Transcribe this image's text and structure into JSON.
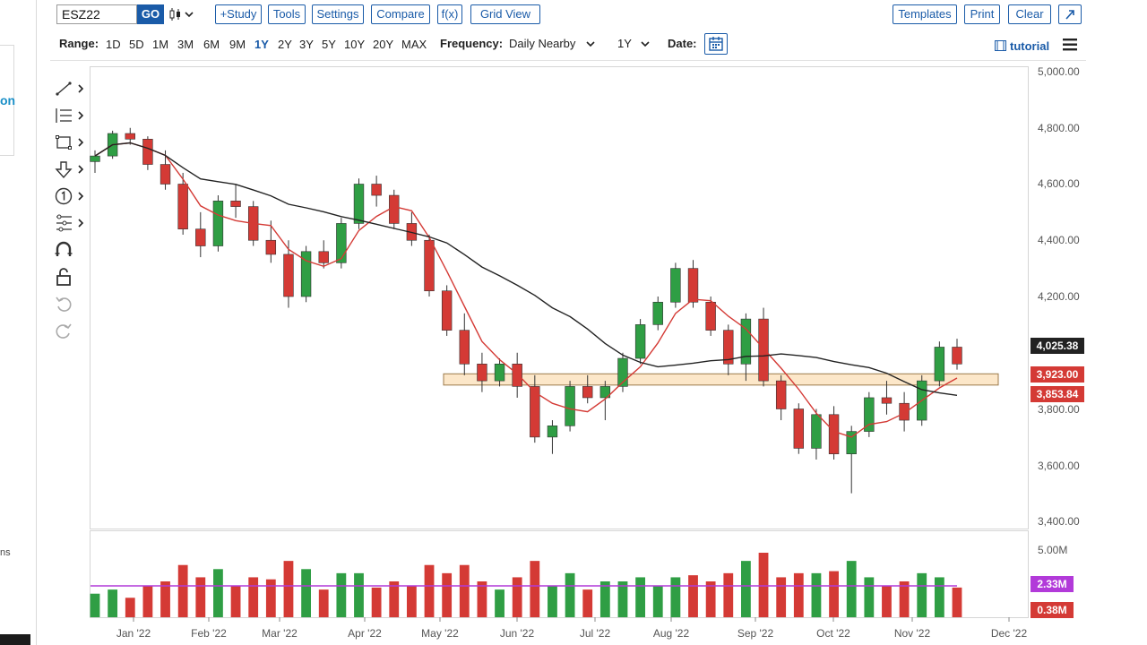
{
  "toolbar": {
    "symbol": "ESZ22",
    "go_label": "GO",
    "study_label": "+Study",
    "tools_label": "Tools",
    "settings_label": "Settings",
    "compare_label": "Compare",
    "fx_label": "f(x)",
    "gridview_label": "Grid View",
    "templates_label": "Templates",
    "print_label": "Print",
    "clear_label": "Clear"
  },
  "rangebar": {
    "range_label": "Range:",
    "ranges": [
      "1D",
      "5D",
      "1M",
      "3M",
      "6M",
      "9M",
      "1Y",
      "2Y",
      "3Y",
      "5Y",
      "10Y",
      "20Y",
      "MAX"
    ],
    "active_range": "1Y",
    "frequency_label": "Frequency:",
    "frequency_value": "Daily Nearby",
    "period_value": "1Y",
    "date_label": "Date:",
    "tutorial_label": "tutorial"
  },
  "left_fragments": {
    "on": "on",
    "ns": "ns"
  },
  "drawing_tools": [
    "line-tool-icon",
    "fib-tool-icon",
    "shape-tool-icon",
    "arrow-tool-icon",
    "number-tool-icon",
    "measure-tool-icon",
    "magnet-icon",
    "lock-icon",
    "undo-icon",
    "redo-icon"
  ],
  "colors": {
    "accent": "#1a5ba8",
    "bull": "#2f9e44",
    "bear": "#d43a35",
    "ma_fast": "#d43a35",
    "ma_slow": "#222222",
    "volume_avg": "#b23ad9",
    "zone_fill": "#fbe3c0",
    "zone_border": "#9b7a4a"
  },
  "chart_data": [
    {
      "type": "candlestick",
      "symbol": "ESZ22",
      "x_ticks": [
        "Jan '22",
        "Feb '22",
        "Mar '22",
        "Apr '22",
        "May '22",
        "Jun '22",
        "Jul '22",
        "Aug '22",
        "Sep '22",
        "Oct '22",
        "Nov '22",
        "Dec '22"
      ],
      "y_ticks": [
        "5,000.00",
        "4,800.00",
        "4,600.00",
        "4,400.00",
        "4,200.00",
        "3,800.00",
        "3,600.00",
        "3,400.00"
      ],
      "ylim": [
        3400,
        5000
      ],
      "price_labels": [
        {
          "value": "4,025.38",
          "color": "#222222"
        },
        {
          "value": "3,923.00",
          "color": "#d43a35"
        },
        {
          "value": "3,853.84",
          "color": "#d43a35"
        }
      ],
      "zone": {
        "low": 3885,
        "high": 3925
      },
      "series": [
        {
          "values": [
            [
              4680,
              4720,
              4640,
              4700
            ],
            [
              4700,
              4790,
              4690,
              4780
            ],
            [
              4780,
              4800,
              4740,
              4760
            ],
            [
              4760,
              4770,
              4650,
              4670
            ],
            [
              4670,
              4720,
              4580,
              4600
            ],
            [
              4600,
              4640,
              4420,
              4440
            ],
            [
              4440,
              4500,
              4340,
              4380
            ],
            [
              4380,
              4560,
              4360,
              4540
            ],
            [
              4540,
              4600,
              4480,
              4520
            ],
            [
              4520,
              4540,
              4380,
              4400
            ],
            [
              4400,
              4470,
              4320,
              4350
            ],
            [
              4350,
              4400,
              4160,
              4200
            ],
            [
              4200,
              4380,
              4180,
              4360
            ],
            [
              4360,
              4400,
              4300,
              4320
            ],
            [
              4320,
              4480,
              4300,
              4460
            ],
            [
              4460,
              4620,
              4440,
              4600
            ],
            [
              4600,
              4630,
              4520,
              4560
            ],
            [
              4560,
              4580,
              4440,
              4460
            ],
            [
              4460,
              4500,
              4380,
              4400
            ],
            [
              4400,
              4420,
              4200,
              4220
            ],
            [
              4220,
              4240,
              4060,
              4080
            ],
            [
              4080,
              4140,
              3920,
              3960
            ],
            [
              3960,
              4000,
              3860,
              3900
            ],
            [
              3900,
              3980,
              3880,
              3960
            ],
            [
              3960,
              4000,
              3840,
              3880
            ],
            [
              3880,
              3920,
              3680,
              3700
            ],
            [
              3700,
              3760,
              3640,
              3740
            ],
            [
              3740,
              3900,
              3720,
              3880
            ],
            [
              3880,
              3920,
              3820,
              3840
            ],
            [
              3840,
              3900,
              3760,
              3880
            ],
            [
              3880,
              4000,
              3860,
              3980
            ],
            [
              3980,
              4120,
              3960,
              4100
            ],
            [
              4100,
              4200,
              4080,
              4180
            ],
            [
              4180,
              4320,
              4160,
              4300
            ],
            [
              4300,
              4330,
              4160,
              4180
            ],
            [
              4180,
              4200,
              4060,
              4080
            ],
            [
              4080,
              4100,
              3920,
              3960
            ],
            [
              3960,
              4140,
              3900,
              4120
            ],
            [
              4120,
              4160,
              3880,
              3900
            ],
            [
              3900,
              3920,
              3760,
              3800
            ],
            [
              3800,
              3820,
              3640,
              3660
            ],
            [
              3660,
              3800,
              3620,
              3780
            ],
            [
              3780,
              3810,
              3620,
              3640
            ],
            [
              3640,
              3740,
              3500,
              3720
            ],
            [
              3720,
              3860,
              3700,
              3840
            ],
            [
              3840,
              3900,
              3780,
              3820
            ],
            [
              3820,
              3860,
              3720,
              3760
            ],
            [
              3760,
              3920,
              3740,
              3900
            ],
            [
              3900,
              4040,
              3880,
              4020
            ],
            [
              4020,
              4050,
              3940,
              3960
            ]
          ]
        }
      ]
    },
    {
      "type": "bar",
      "label": "volume",
      "y_ticks": [
        "5.00M"
      ],
      "price_labels": [
        {
          "value": "2.33M",
          "color": "#b23ad9"
        },
        {
          "value": "0.38M",
          "color": "#d43a35"
        }
      ]
    }
  ]
}
